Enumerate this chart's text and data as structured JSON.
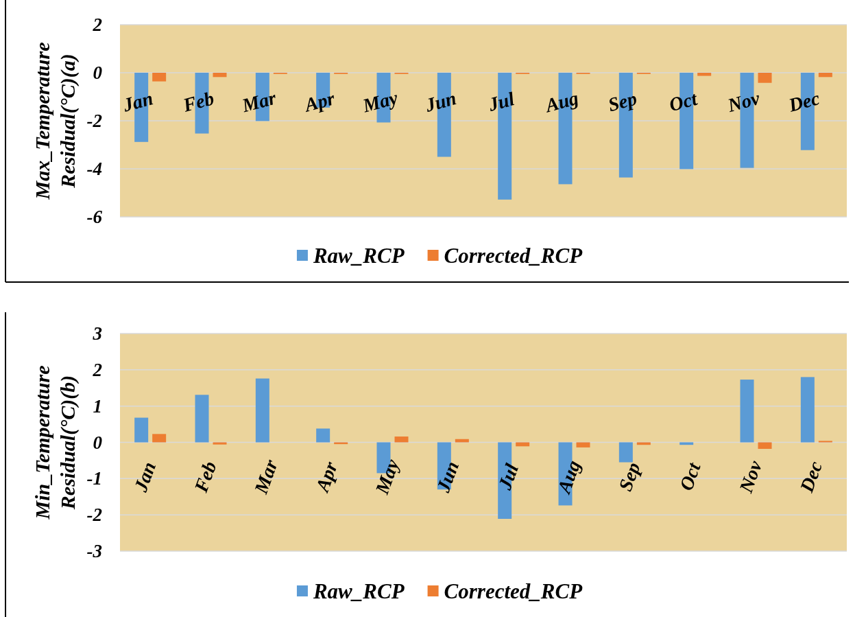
{
  "chart_data": [
    {
      "type": "bar",
      "categories": [
        "Jan",
        "Feb",
        "Mar",
        "Apr",
        "May",
        "Jun",
        "Jul",
        "Aug",
        "Sep",
        "Oct",
        "Nov",
        "Dec"
      ],
      "ylabel": "Max_Temperature\nResidual(°C)(a)",
      "ylim": [
        -6,
        2
      ],
      "yticks": [
        -6,
        -4,
        -2,
        0,
        2
      ],
      "grid": "y",
      "legend": "bottom",
      "series": [
        {
          "name": "Raw_RCP",
          "color": "#5b9bd5",
          "values": [
            -2.88,
            -2.53,
            -2.01,
            -1.45,
            -2.07,
            -3.5,
            -5.28,
            -4.64,
            -4.36,
            -4.01,
            -3.96,
            -3.22
          ]
        },
        {
          "name": "Corrected_RCP",
          "color": "#ed7d31",
          "values": [
            -0.36,
            -0.18,
            -0.05,
            -0.05,
            -0.05,
            null,
            -0.05,
            -0.05,
            -0.05,
            -0.13,
            -0.42,
            -0.18
          ]
        }
      ]
    },
    {
      "type": "bar",
      "categories": [
        "Jan",
        "Feb",
        "Mar",
        "Apr",
        "May",
        "Jun",
        "Jul",
        "Aug",
        "Sep",
        "Oct",
        "Nov",
        "Dec"
      ],
      "ylabel": "Min_Temperature\nResidual(°C)(b)",
      "ylim": [
        -3,
        3
      ],
      "yticks": [
        -3,
        -2,
        -1,
        0,
        1,
        2,
        3
      ],
      "grid": "y",
      "legend": "bottom",
      "series": [
        {
          "name": "Raw_RCP",
          "color": "#5b9bd5",
          "values": [
            0.68,
            1.31,
            1.76,
            0.38,
            -0.85,
            -1.3,
            -2.11,
            -1.74,
            -0.55,
            -0.07,
            1.73,
            1.8
          ]
        },
        {
          "name": "Corrected_RCP",
          "color": "#ed7d31",
          "values": [
            0.23,
            -0.06,
            null,
            -0.05,
            0.16,
            0.09,
            -0.11,
            -0.14,
            -0.07,
            null,
            -0.18,
            0.04
          ]
        }
      ]
    }
  ]
}
